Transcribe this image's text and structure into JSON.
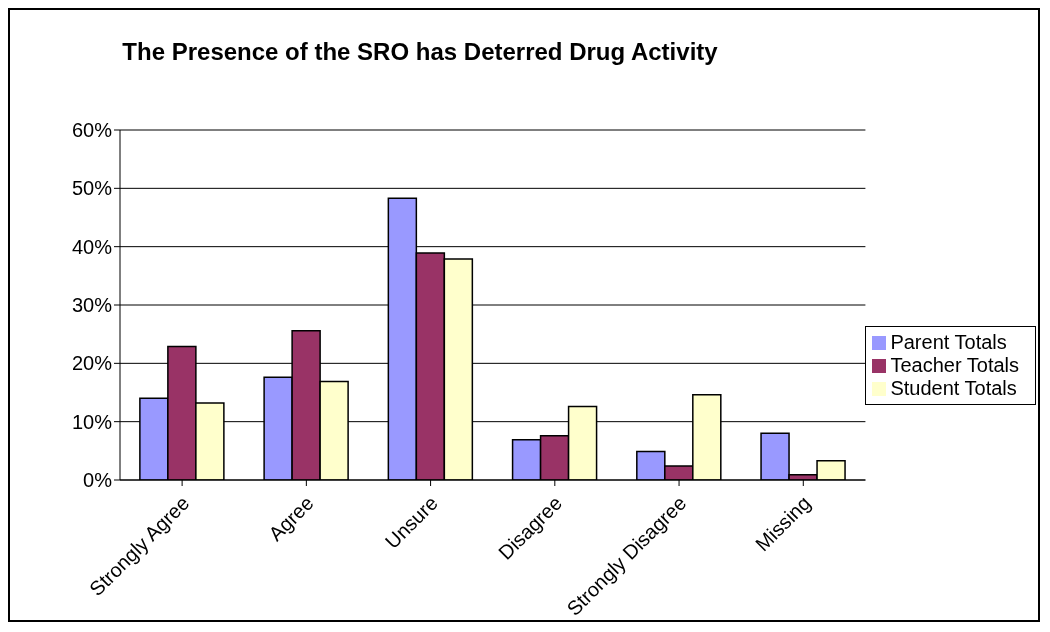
{
  "chart_data": {
    "type": "bar",
    "title": "The Presence of the SRO has Deterred Drug Activity",
    "categories": [
      "Strongly Agree",
      "Agree",
      "Unsure",
      "Disagree",
      "Strongly Disagree",
      "Missing"
    ],
    "series": [
      {
        "name": "Parent Totals",
        "color": "#9999ff",
        "values": [
          14.0,
          17.6,
          48.3,
          6.9,
          4.9,
          8.0
        ]
      },
      {
        "name": "Teacher Totals",
        "color": "#993366",
        "values": [
          22.9,
          25.6,
          38.9,
          7.6,
          2.4,
          0.9
        ]
      },
      {
        "name": "Student Totals",
        "color": "#ffffcc",
        "values": [
          13.2,
          16.9,
          37.9,
          12.6,
          14.6,
          3.3
        ]
      }
    ],
    "ylim": [
      0,
      60
    ],
    "yticks": [
      {
        "value": 0,
        "label": "0%"
      },
      {
        "value": 10,
        "label": "10%"
      },
      {
        "value": 20,
        "label": "20%"
      },
      {
        "value": 30,
        "label": "30%"
      },
      {
        "value": 40,
        "label": "40%"
      },
      {
        "value": 50,
        "label": "50%"
      },
      {
        "value": 60,
        "label": "60%"
      }
    ],
    "grid": "y",
    "legend": "right"
  }
}
